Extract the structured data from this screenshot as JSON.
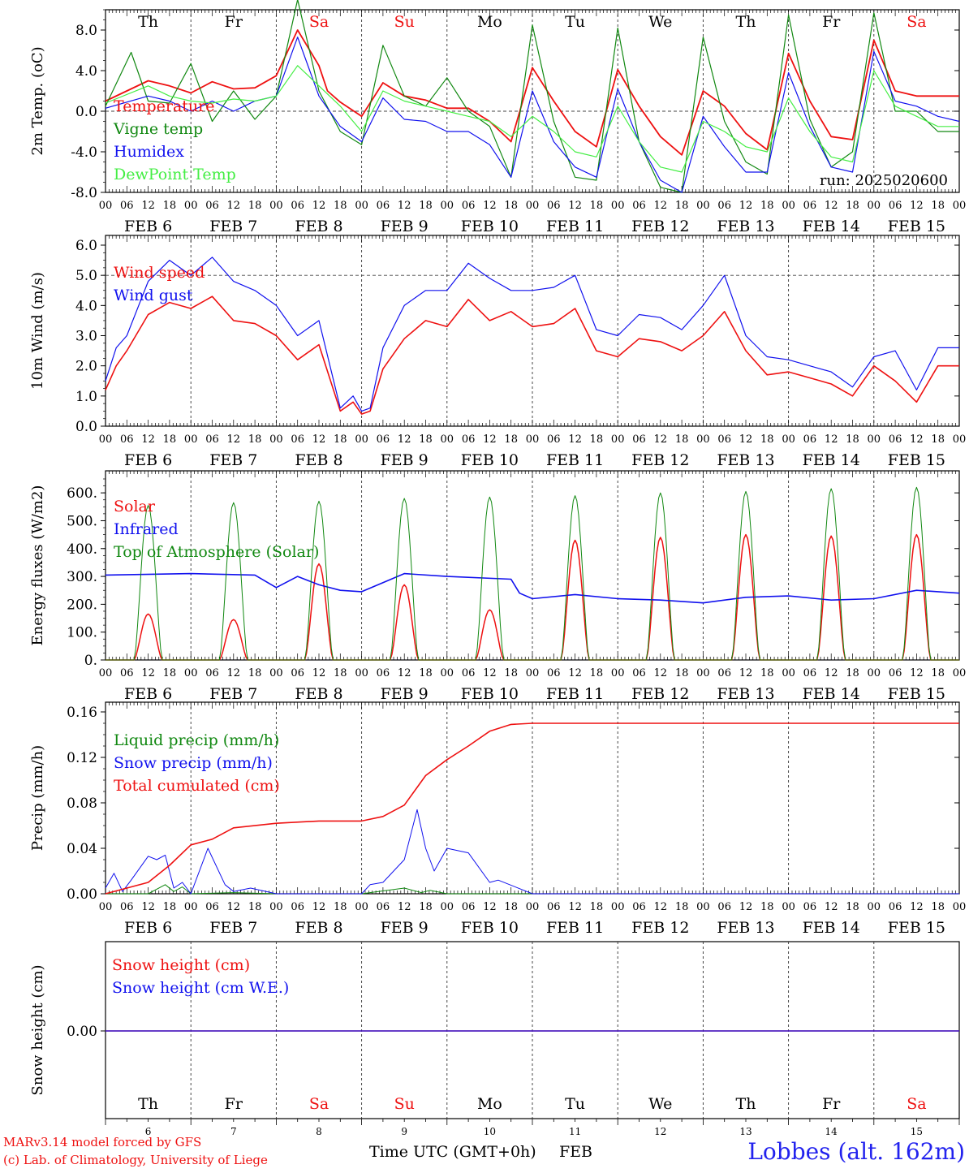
{
  "x_day_start": 6,
  "x_days": 10,
  "weekdays": [
    {
      "label": "Th",
      "color": "#000000"
    },
    {
      "label": "Fr",
      "color": "#000000"
    },
    {
      "label": "Sa",
      "color": "#ee1111"
    },
    {
      "label": "Su",
      "color": "#ee1111"
    },
    {
      "label": "Mo",
      "color": "#000000"
    },
    {
      "label": "Tu",
      "color": "#000000"
    },
    {
      "label": "We",
      "color": "#000000"
    },
    {
      "label": "Th",
      "color": "#000000"
    },
    {
      "label": "Fr",
      "color": "#000000"
    },
    {
      "label": "Sa",
      "color": "#ee1111"
    }
  ],
  "hour_ticks": [
    "00",
    "06",
    "12",
    "18"
  ],
  "day_labels": [
    "FEB  6",
    "FEB  7",
    "FEB  8",
    "FEB  9",
    "FEB 10",
    "FEB 11",
    "FEB 12",
    "FEB 13",
    "FEB 14",
    "FEB 15"
  ],
  "bottom_day_numbers": [
    "6",
    "7",
    "8",
    "9",
    "10",
    "11",
    "12",
    "13",
    "14",
    "15"
  ],
  "footer": {
    "model_line": "MARv3.14 model forced by GFS",
    "copyright_line": "(c) Lab. of Climatology, University of Liege",
    "xaxis_title": "Time UTC (GMT+0h)",
    "month": "FEB",
    "station": "Lobbes (alt. 162m)"
  },
  "chart_data": [
    {
      "type": "line",
      "id": "temperature",
      "ylabel": "2m Temp. (oC)",
      "ylim": [
        -8,
        10
      ],
      "yticks": [
        -8,
        -4,
        0,
        4,
        8
      ],
      "ytick_labels": [
        "-8.0",
        "-4.0",
        "0.0",
        "4.0",
        "8.0"
      ],
      "hline": 0,
      "annotation": "run: 2025020600",
      "series": [
        {
          "name": "Temperature",
          "color": "#ee1111",
          "width": 1.8,
          "x": [
            0,
            0.5,
            0.75,
            1,
            1.25,
            1.5,
            1.75,
            2,
            2.25,
            2.5,
            2.6,
            2.75,
            3,
            3.25,
            3.5,
            3.75,
            4,
            4.25,
            4.5,
            4.75,
            5,
            5.25,
            5.5,
            5.75,
            6,
            6.25,
            6.5,
            6.75,
            7,
            7.25,
            7.5,
            7.75,
            8,
            8.25,
            8.5,
            8.75,
            9,
            9.25,
            9.5,
            9.75,
            10
          ],
          "y": [
            1.0,
            3.0,
            2.5,
            1.8,
            2.9,
            2.2,
            2.3,
            3.5,
            8.0,
            4.5,
            2.0,
            0.9,
            -0.5,
            2.8,
            1.5,
            1.1,
            0.3,
            0.3,
            -1.0,
            -3.0,
            4.3,
            1.0,
            -2.0,
            -3.5,
            4.1,
            0.5,
            -2.5,
            -4.3,
            2.0,
            0.5,
            -2.2,
            -3.8,
            5.7,
            1.0,
            -2.5,
            -2.8,
            7.0,
            2.0,
            1.5,
            1.5,
            1.5
          ]
        },
        {
          "name": "Vigne temp",
          "color": "#118811",
          "width": 1.2,
          "x": [
            0,
            0.3,
            0.5,
            0.75,
            1,
            1.25,
            1.5,
            1.75,
            2,
            2.25,
            2.5,
            2.75,
            3,
            3.25,
            3.5,
            3.75,
            4,
            4.25,
            4.5,
            4.75,
            5,
            5.25,
            5.5,
            5.75,
            6,
            6.25,
            6.5,
            6.75,
            7,
            7.25,
            7.5,
            7.75,
            8,
            8.25,
            8.5,
            8.75,
            9,
            9.25,
            9.5,
            9.75,
            10
          ],
          "y": [
            0.5,
            5.8,
            1.0,
            0.8,
            4.7,
            -1.0,
            2.0,
            -0.8,
            1.5,
            11.0,
            2.0,
            -2.0,
            -3.3,
            6.5,
            1.5,
            0.5,
            3.3,
            0.0,
            -1.5,
            -6.5,
            8.5,
            -1.0,
            -6.5,
            -6.8,
            8.2,
            -3.0,
            -7.5,
            -8.0,
            7.3,
            -1.0,
            -5.0,
            -6.2,
            9.5,
            -0.8,
            -5.5,
            -4.0,
            9.7,
            0.0,
            0.0,
            -2.0,
            -2.0
          ]
        },
        {
          "name": "Humidex",
          "color": "#1111ee",
          "width": 1.2,
          "x": [
            0,
            0.5,
            0.75,
            1,
            1.25,
            1.5,
            1.75,
            2,
            2.25,
            2.5,
            2.75,
            3,
            3.25,
            3.5,
            3.75,
            4,
            4.25,
            4.5,
            4.75,
            5,
            5.25,
            5.5,
            5.75,
            6,
            6.25,
            6.5,
            6.75,
            7,
            7.25,
            7.5,
            7.75,
            8,
            8.25,
            8.5,
            8.75,
            9,
            9.25,
            9.5,
            9.75,
            10
          ],
          "y": [
            0.3,
            1.5,
            1.0,
            0.0,
            1.0,
            0.0,
            1.0,
            1.5,
            7.3,
            1.5,
            -1.5,
            -3.0,
            1.3,
            -0.8,
            -1.0,
            -2.0,
            -2.0,
            -3.3,
            -6.5,
            2.0,
            -3.0,
            -5.5,
            -6.5,
            2.2,
            -3.0,
            -6.8,
            -8.0,
            -0.5,
            -3.5,
            -6.0,
            -6.0,
            3.8,
            -1.5,
            -5.5,
            -6.0,
            5.9,
            1.0,
            0.5,
            -0.5,
            -1.0
          ]
        },
        {
          "name": "DewPoint Temp",
          "color": "#44ee44",
          "width": 1.2,
          "x": [
            0,
            0.5,
            0.75,
            1,
            1.25,
            1.5,
            1.75,
            2,
            2.25,
            2.5,
            2.75,
            3,
            3.25,
            3.5,
            3.75,
            4,
            4.25,
            4.5,
            4.75,
            5,
            5.25,
            5.5,
            5.75,
            6,
            6.25,
            6.5,
            6.75,
            7,
            7.25,
            7.5,
            7.75,
            8,
            8.25,
            8.5,
            8.75,
            9,
            9.25,
            9.5,
            9.75,
            10
          ],
          "y": [
            0.8,
            2.5,
            1.5,
            1.0,
            0.8,
            1.2,
            1.0,
            1.5,
            4.5,
            2.5,
            0.5,
            -2.0,
            2.0,
            1.0,
            0.5,
            0.0,
            -0.5,
            -1.0,
            -2.5,
            -0.5,
            -2.0,
            -4.0,
            -4.5,
            0.5,
            -3.0,
            -5.5,
            -6.0,
            -1.0,
            -2.0,
            -3.5,
            -4.0,
            1.3,
            -2.0,
            -4.5,
            -5.0,
            4.0,
            0.5,
            -0.5,
            -1.5,
            -1.5
          ]
        }
      ]
    },
    {
      "type": "line",
      "id": "wind",
      "ylabel": "10m Wind (m/s)",
      "ylim": [
        0,
        6
      ],
      "yticks": [
        0,
        1,
        2,
        3,
        4,
        5,
        6
      ],
      "ytick_labels": [
        "0.0",
        "1.0",
        "2.0",
        "3.0",
        "4.0",
        "5.0",
        "6.0"
      ],
      "hline": 5,
      "series": [
        {
          "name": "Wind speed",
          "color": "#ee1111",
          "width": 1.6,
          "x": [
            0,
            0.125,
            0.25,
            0.5,
            0.75,
            1,
            1.25,
            1.5,
            1.75,
            2,
            2.25,
            2.5,
            2.75,
            2.9,
            3,
            3.1,
            3.25,
            3.5,
            3.75,
            4,
            4.25,
            4.5,
            4.75,
            5,
            5.25,
            5.5,
            5.75,
            6,
            6.25,
            6.5,
            6.75,
            7,
            7.25,
            7.5,
            7.75,
            8,
            8.25,
            8.5,
            8.75,
            9,
            9.25,
            9.5,
            9.75,
            10
          ],
          "y": [
            1.2,
            2.0,
            2.5,
            3.7,
            4.1,
            3.9,
            4.3,
            3.5,
            3.4,
            3.0,
            2.2,
            2.7,
            0.5,
            0.8,
            0.4,
            0.5,
            1.9,
            2.9,
            3.5,
            3.3,
            4.2,
            3.5,
            3.8,
            3.3,
            3.4,
            3.9,
            2.5,
            2.3,
            2.9,
            2.8,
            2.5,
            3.0,
            3.8,
            2.5,
            1.7,
            1.8,
            1.6,
            1.4,
            1.0,
            2.0,
            1.5,
            0.8,
            2.0,
            2.0
          ]
        },
        {
          "name": "Wind gust",
          "color": "#1111ee",
          "width": 1.2,
          "x": [
            0,
            0.125,
            0.25,
            0.5,
            0.75,
            1,
            1.25,
            1.5,
            1.75,
            2,
            2.25,
            2.5,
            2.75,
            2.9,
            3,
            3.1,
            3.25,
            3.5,
            3.75,
            4,
            4.25,
            4.5,
            4.75,
            5,
            5.25,
            5.5,
            5.75,
            6,
            6.25,
            6.5,
            6.75,
            7,
            7.25,
            7.5,
            7.75,
            8,
            8.25,
            8.5,
            8.75,
            9,
            9.25,
            9.5,
            9.75,
            10
          ],
          "y": [
            1.5,
            2.6,
            3.0,
            4.8,
            5.5,
            5.0,
            5.6,
            4.8,
            4.5,
            4.0,
            3.0,
            3.5,
            0.6,
            1.0,
            0.5,
            0.6,
            2.6,
            4.0,
            4.5,
            4.5,
            5.4,
            4.9,
            4.5,
            4.5,
            4.6,
            5.0,
            3.2,
            3.0,
            3.7,
            3.6,
            3.2,
            4.0,
            5.0,
            3.0,
            2.3,
            2.2,
            2.0,
            1.8,
            1.3,
            2.3,
            2.5,
            1.2,
            2.6,
            2.6
          ]
        }
      ]
    },
    {
      "type": "line",
      "id": "energy",
      "ylabel": "Energy fluxes (W/m2)",
      "ylim": [
        0,
        650
      ],
      "yticks": [
        0,
        100,
        200,
        300,
        400,
        500,
        600
      ],
      "ytick_labels": [
        "0.",
        "100.",
        "200.",
        "300.",
        "400.",
        "500.",
        "600."
      ],
      "series": [
        {
          "name": "Solar",
          "color": "#ee1111",
          "width": 1.5,
          "diurnal": true,
          "peaks": [
            165,
            145,
            345,
            270,
            180,
            430,
            440,
            450,
            445,
            450
          ]
        },
        {
          "name": "Infrared",
          "color": "#1111ee",
          "width": 1.6,
          "x": [
            0,
            1,
            1.75,
            2,
            2.25,
            2.5,
            2.75,
            3,
            3.5,
            4,
            4.75,
            4.85,
            5,
            5.5,
            6,
            6.5,
            7,
            7.5,
            8,
            8.5,
            9,
            9.5,
            10
          ],
          "y": [
            305,
            310,
            305,
            260,
            300,
            270,
            250,
            245,
            310,
            300,
            290,
            240,
            220,
            235,
            220,
            215,
            205,
            225,
            230,
            215,
            220,
            250,
            240
          ]
        },
        {
          "name": "Top of Atmosphere (Solar)",
          "color": "#118811",
          "width": 1.0,
          "diurnal": true,
          "peaks": [
            555,
            565,
            570,
            580,
            585,
            590,
            600,
            605,
            615,
            620
          ]
        }
      ]
    },
    {
      "type": "line",
      "id": "precip",
      "ylabel": "Precip (mm/h)",
      "ylim": [
        0,
        0.16
      ],
      "yticks": [
        0,
        0.04,
        0.08,
        0.12,
        0.16
      ],
      "ytick_labels": [
        "0.00",
        "0.04",
        "0.08",
        "0.12",
        "0.16"
      ],
      "series": [
        {
          "name": "Liquid precip (mm/h)",
          "color": "#118811",
          "width": 1.0,
          "x": [
            0,
            0.5,
            0.7,
            0.8,
            0.9,
            1,
            1.5,
            2,
            3,
            3.5,
            3.7,
            3.8,
            4,
            4.5,
            5,
            10
          ],
          "y": [
            0,
            0,
            0.008,
            0.002,
            0.006,
            0,
            0.001,
            0,
            0,
            0.005,
            0.001,
            0.003,
            0,
            0,
            0,
            0
          ]
        },
        {
          "name": "Snow precip (mm/h)",
          "color": "#1111ee",
          "width": 1.0,
          "x": [
            0,
            0.1,
            0.2,
            0.3,
            0.5,
            0.6,
            0.7,
            0.8,
            0.9,
            1,
            1.2,
            1.4,
            1.5,
            1.7,
            2,
            2.5,
            3,
            3.1,
            3.25,
            3.5,
            3.65,
            3.75,
            3.85,
            4,
            4.25,
            4.5,
            4.6,
            5,
            10
          ],
          "y": [
            0.005,
            0.018,
            0.002,
            0.012,
            0.033,
            0.03,
            0.034,
            0.005,
            0.01,
            0,
            0.04,
            0.008,
            0.002,
            0.005,
            0,
            0,
            0,
            0.008,
            0.01,
            0.03,
            0.074,
            0.04,
            0.02,
            0.04,
            0.036,
            0.01,
            0.012,
            0,
            0
          ]
        },
        {
          "name": "Total cumulated (cm)",
          "color": "#ee1111",
          "width": 1.6,
          "x": [
            0,
            0.5,
            0.75,
            1,
            1.25,
            1.5,
            2,
            2.5,
            3,
            3.25,
            3.5,
            3.75,
            4,
            4.25,
            4.5,
            4.75,
            5,
            10
          ],
          "y": [
            0,
            0.01,
            0.025,
            0.043,
            0.048,
            0.058,
            0.062,
            0.064,
            0.064,
            0.068,
            0.078,
            0.104,
            0.118,
            0.13,
            0.143,
            0.149,
            0.15,
            0.15
          ]
        }
      ]
    },
    {
      "type": "line",
      "id": "snow",
      "ylabel": "Snow height (cm)",
      "ylim": [
        -1,
        1
      ],
      "yticks": [
        0
      ],
      "ytick_labels": [
        "0.00"
      ],
      "series": [
        {
          "name": "Snow height (cm)",
          "color": "#ee1111",
          "width": 1.4,
          "x": [
            0,
            10
          ],
          "y": [
            0,
            0
          ]
        },
        {
          "name": "Snow height (cm W.E.)",
          "color": "#1111ee",
          "width": 1.2,
          "x": [
            0,
            10
          ],
          "y": [
            0,
            0
          ]
        }
      ]
    }
  ]
}
